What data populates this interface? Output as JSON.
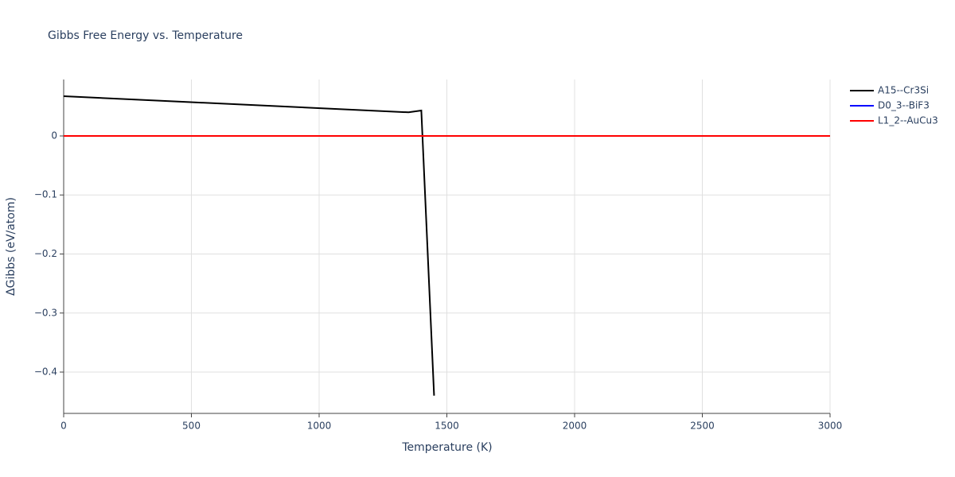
{
  "chart_data": {
    "type": "line",
    "title": "Gibbs Free Energy vs. Temperature",
    "x_label": "Temperature (K)",
    "y_label": "ΔGibbs (eV/atom)",
    "xlim": [
      0,
      3000
    ],
    "xticks": [
      0,
      500,
      1000,
      1500,
      2000,
      2500,
      3000
    ],
    "ylim": [
      -0.47,
      0.0956
    ],
    "yticks": [
      {
        "value": -0.4,
        "label": "−0.4"
      },
      {
        "value": -0.3,
        "label": "−0.3"
      },
      {
        "value": -0.2,
        "label": "−0.2"
      },
      {
        "value": -0.1,
        "label": "−0.1"
      },
      0
    ],
    "grid": true,
    "legend": "right",
    "series": [
      {
        "name": "A15--Cr3Si",
        "color": "#000000",
        "x": [
          0,
          1350,
          1400,
          1450
        ],
        "values": [
          0.0673,
          0.04,
          0.0431,
          -0.44
        ]
      },
      {
        "name": "D0_3--BiF3",
        "color": "#0000ff",
        "x": [
          0,
          3000
        ],
        "values": [
          0,
          0
        ]
      },
      {
        "name": "L1_2--AuCu3",
        "color": "#ff0000",
        "x": [
          0,
          3000
        ],
        "values": [
          0,
          0
        ]
      }
    ]
  }
}
